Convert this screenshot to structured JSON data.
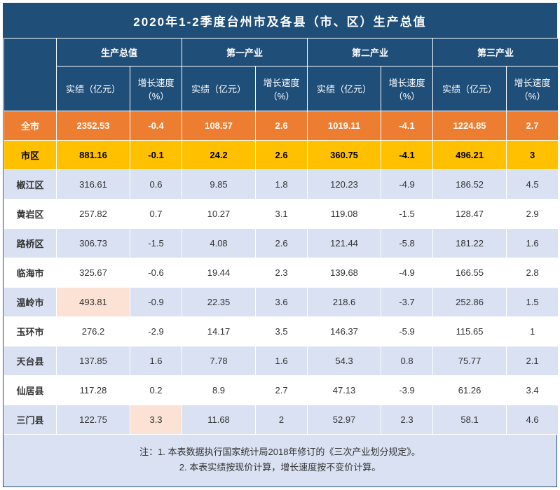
{
  "title": "2020年1-2季度台州市及各县（市、区）生产总值",
  "groups": [
    "生产总值",
    "第一产业",
    "第二产业",
    "第三产业"
  ],
  "sub_value": "实绩（亿元）",
  "sub_growth": "增长速度（%）",
  "colors": {
    "header_bg": "#1f4e79",
    "header_fg": "#ffffff",
    "row_orange": "#ed7d31",
    "row_yellow": "#ffc000",
    "row_blue": "#d9e1f2",
    "row_white": "#ffffff",
    "highlight_pink": "#fbe2d5",
    "border": "#ffffff"
  },
  "rows": [
    {
      "label": "全市",
      "cls": "r-orange",
      "cells": [
        "2352.53",
        "-0.4",
        "108.57",
        "2.6",
        "1019.11",
        "-4.1",
        "1224.85",
        "2.7"
      ]
    },
    {
      "label": "市区",
      "cls": "r-yellow",
      "cells": [
        "881.16",
        "-0.1",
        "24.2",
        "2.6",
        "360.75",
        "-4.1",
        "496.21",
        "3"
      ]
    },
    {
      "label": "椒江区",
      "cls": "r-blue",
      "cells": [
        "316.61",
        "0.6",
        "9.85",
        "1.8",
        "120.23",
        "-4.9",
        "186.52",
        "4.5"
      ]
    },
    {
      "label": "黄岩区",
      "cls": "r-white",
      "cells": [
        "257.82",
        "0.7",
        "10.27",
        "3.1",
        "119.08",
        "-1.5",
        "128.47",
        "2.9"
      ]
    },
    {
      "label": "路桥区",
      "cls": "r-blue",
      "cells": [
        "306.73",
        "-1.5",
        "4.08",
        "2.6",
        "121.44",
        "-5.8",
        "181.22",
        "1.6"
      ]
    },
    {
      "label": "临海市",
      "cls": "r-white",
      "cells": [
        "325.67",
        "-0.6",
        "19.44",
        "2.3",
        "139.68",
        "-4.9",
        "166.55",
        "2.8"
      ]
    },
    {
      "label": "温岭市",
      "cls": "r-blue",
      "cells": [
        "493.81",
        "-0.9",
        "22.35",
        "3.6",
        "218.6",
        "-3.7",
        "252.86",
        "1.5"
      ],
      "hl": [
        0
      ]
    },
    {
      "label": "玉环市",
      "cls": "r-white",
      "cells": [
        "276.2",
        "-2.9",
        "14.17",
        "3.5",
        "146.37",
        "-5.9",
        "115.65",
        "1"
      ]
    },
    {
      "label": "天台县",
      "cls": "r-blue",
      "cells": [
        "137.85",
        "1.6",
        "7.78",
        "1.6",
        "54.3",
        "0.8",
        "75.77",
        "2.1"
      ]
    },
    {
      "label": "仙居县",
      "cls": "r-white",
      "cells": [
        "117.28",
        "0.2",
        "8.9",
        "2.7",
        "47.13",
        "-3.9",
        "61.26",
        "3.4"
      ]
    },
    {
      "label": "三门县",
      "cls": "r-blue",
      "cells": [
        "122.75",
        "3.3",
        "11.68",
        "2",
        "52.97",
        "2.3",
        "58.1",
        "4.6"
      ],
      "hl": [
        1
      ]
    }
  ],
  "notes": [
    "注：1. 本表数据执行国家统计局2018年修订的《三次产业划分规定》。",
    "2. 本表实绩按现价计算，增长速度按不变价计算。"
  ]
}
